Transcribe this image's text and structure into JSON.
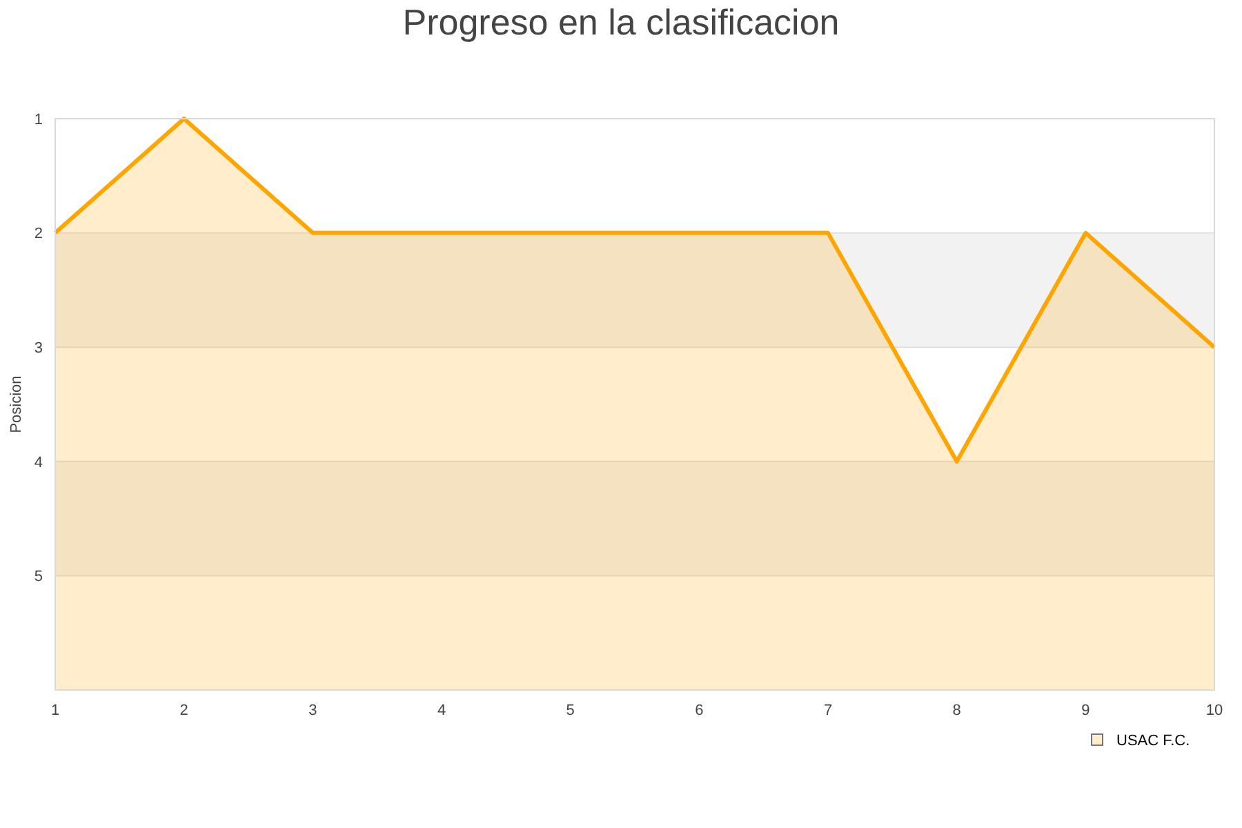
{
  "chart_data": {
    "type": "area",
    "title": "Progreso en la clasificacion",
    "ylabel": "Posicion",
    "x": [
      1,
      2,
      3,
      4,
      5,
      6,
      7,
      8,
      9,
      10
    ],
    "xlim": [
      1,
      10
    ],
    "xticks": [
      1,
      2,
      3,
      4,
      5,
      6,
      7,
      8,
      9,
      10
    ],
    "ylim": [
      6,
      1
    ],
    "yticks": [
      1,
      2,
      3,
      4,
      5
    ],
    "series": [
      {
        "name": "USAC F.C.",
        "color": "#ffa500",
        "values": [
          2,
          1,
          2,
          2,
          2,
          2,
          2,
          4,
          2,
          3
        ]
      }
    ],
    "bands": [
      {
        "axis": "y",
        "from": 2,
        "to": 3,
        "color": "#f2f2f2"
      },
      {
        "axis": "y",
        "from": 4,
        "to": 5,
        "color": "#f2f2f2"
      }
    ],
    "grid": "y",
    "legend": "bottom right"
  }
}
